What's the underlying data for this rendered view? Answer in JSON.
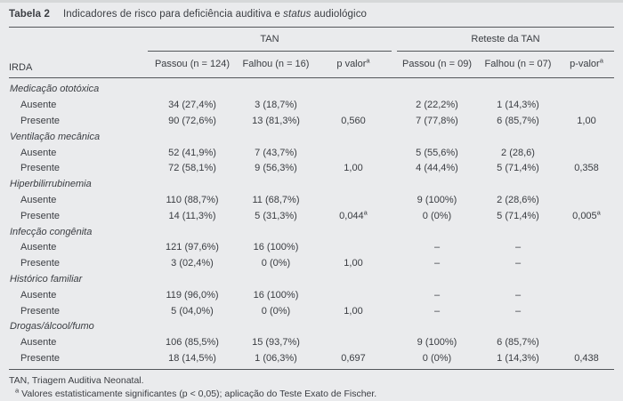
{
  "title": {
    "label": "Tabela 2",
    "text_before_italic": "Indicadores de risco para deficiência auditiva e ",
    "italic_word": "status",
    "text_after_italic": " audiológico"
  },
  "table": {
    "groups": [
      {
        "label": "TAN"
      },
      {
        "label": "Reteste da TAN"
      }
    ],
    "columns": [
      {
        "text": "IRDA"
      },
      {
        "text": "Passou (n = 124)"
      },
      {
        "text": "Falhou (n = 16)"
      },
      {
        "text": "p valor",
        "sup": "a"
      },
      {
        "text": "Passou (n = 09)"
      },
      {
        "text": "Falhou (n = 07)"
      },
      {
        "text": "p-valor",
        "sup": "a"
      }
    ],
    "rows": [
      {
        "type": "group",
        "label": "Medicação ototóxica"
      },
      {
        "type": "data",
        "label": "Ausente",
        "cells": [
          "34 (27,4%)",
          "3 (18,7%)",
          "",
          "2 (22,2%)",
          "1 (14,3%)",
          ""
        ]
      },
      {
        "type": "data",
        "label": "Presente",
        "cells": [
          "90 (72,6%)",
          "13 (81,3%)",
          "0,560",
          "7 (77,8%)",
          "6 (85,7%)",
          "1,00"
        ]
      },
      {
        "type": "group",
        "label": "Ventilação mecânica"
      },
      {
        "type": "data",
        "label": "Ausente",
        "cells": [
          "52 (41,9%)",
          "7 (43,7%)",
          "",
          "5 (55,6%)",
          "2 (28,6)",
          ""
        ]
      },
      {
        "type": "data",
        "label": "Presente",
        "cells": [
          "72 (58,1%)",
          "9 (56,3%)",
          "1,00",
          "4 (44,4%)",
          "5 (71,4%)",
          "0,358"
        ]
      },
      {
        "type": "group",
        "label": "Hiperbilirrubinemia"
      },
      {
        "type": "data",
        "label": "Ausente",
        "cells": [
          "110 (88,7%)",
          "11 (68,7%)",
          "",
          "9 (100%)",
          "2 (28,6%)",
          ""
        ]
      },
      {
        "type": "data",
        "label": "Presente",
        "cells": [
          "14 (11,3%)",
          "5 (31,3%)",
          {
            "text": "0,044",
            "sup": "a"
          },
          "0 (0%)",
          "5 (71,4%)",
          {
            "text": "0,005",
            "sup": "a"
          }
        ]
      },
      {
        "type": "group",
        "label": "Infecção congênita"
      },
      {
        "type": "data",
        "label": "Ausente",
        "cells": [
          "121 (97,6%)",
          "16 (100%)",
          "",
          "–",
          "–",
          ""
        ]
      },
      {
        "type": "data",
        "label": "Presente",
        "cells": [
          "3 (02,4%)",
          "0 (0%)",
          "1,00",
          "–",
          "–",
          ""
        ]
      },
      {
        "type": "group",
        "label": "Histórico familiar"
      },
      {
        "type": "data",
        "label": "Ausente",
        "cells": [
          "119 (96,0%)",
          "16 (100%)",
          "",
          "–",
          "–",
          ""
        ]
      },
      {
        "type": "data",
        "label": "Presente",
        "cells": [
          "5 (04,0%)",
          "0 (0%)",
          "1,00",
          "–",
          "–",
          ""
        ]
      },
      {
        "type": "group",
        "label": "Drogas/álcool/fumo"
      },
      {
        "type": "data",
        "label": "Ausente",
        "cells": [
          "106 (85,5%)",
          "15 (93,7%)",
          "",
          "9 (100%)",
          "6 (85,7%)",
          ""
        ]
      },
      {
        "type": "data",
        "label": "Presente",
        "cells": [
          "18 (14,5%)",
          "1 (06,3%)",
          "0,697",
          "0 (0%)",
          "1 (14,3%)",
          "0,438"
        ]
      }
    ]
  },
  "footnotes": {
    "abbreviation": "TAN, Triagem Auditiva Neonatal.",
    "marker": "a",
    "significance": " Valores estatisticamente significantes (p < 0,05); aplicação do Teste Exato de Fischer."
  }
}
